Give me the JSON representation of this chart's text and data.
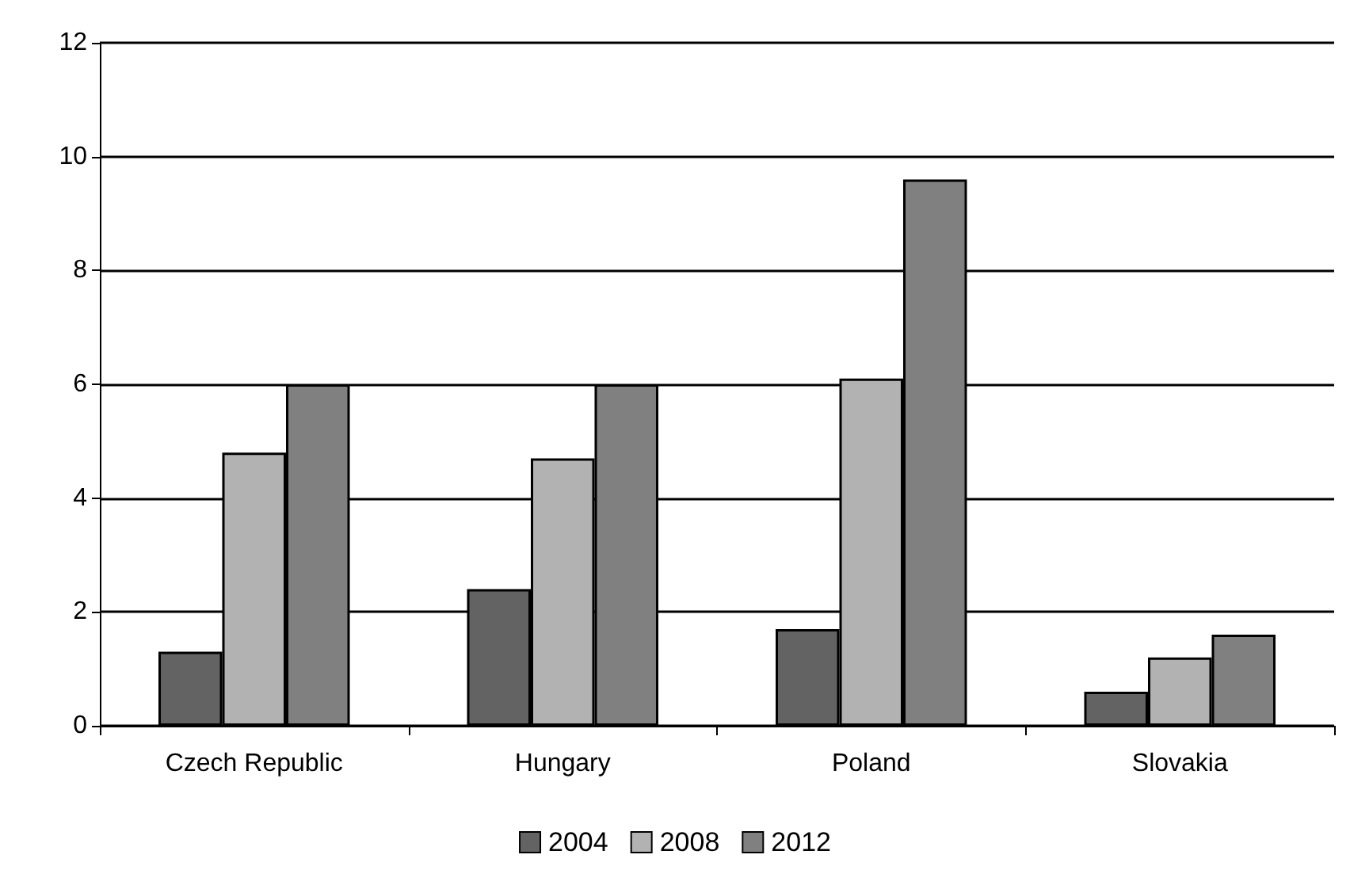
{
  "chart_data": {
    "type": "bar",
    "categories": [
      "Czech Republic",
      "Hungary",
      "Poland",
      "Slovakia"
    ],
    "series": [
      {
        "name": "2004",
        "color": "#636363",
        "values": [
          1.3,
          2.4,
          1.7,
          0.6
        ]
      },
      {
        "name": "2008",
        "color": "#b2b2b2",
        "values": [
          4.8,
          4.7,
          6.1,
          1.2
        ]
      },
      {
        "name": "2012",
        "color": "#808080",
        "values": [
          6.0,
          6.0,
          9.6,
          1.6
        ]
      }
    ],
    "ylim": [
      0,
      12
    ],
    "yticks": [
      0,
      2,
      4,
      6,
      8,
      10,
      12
    ],
    "grid": "y",
    "legend": "bottom"
  }
}
